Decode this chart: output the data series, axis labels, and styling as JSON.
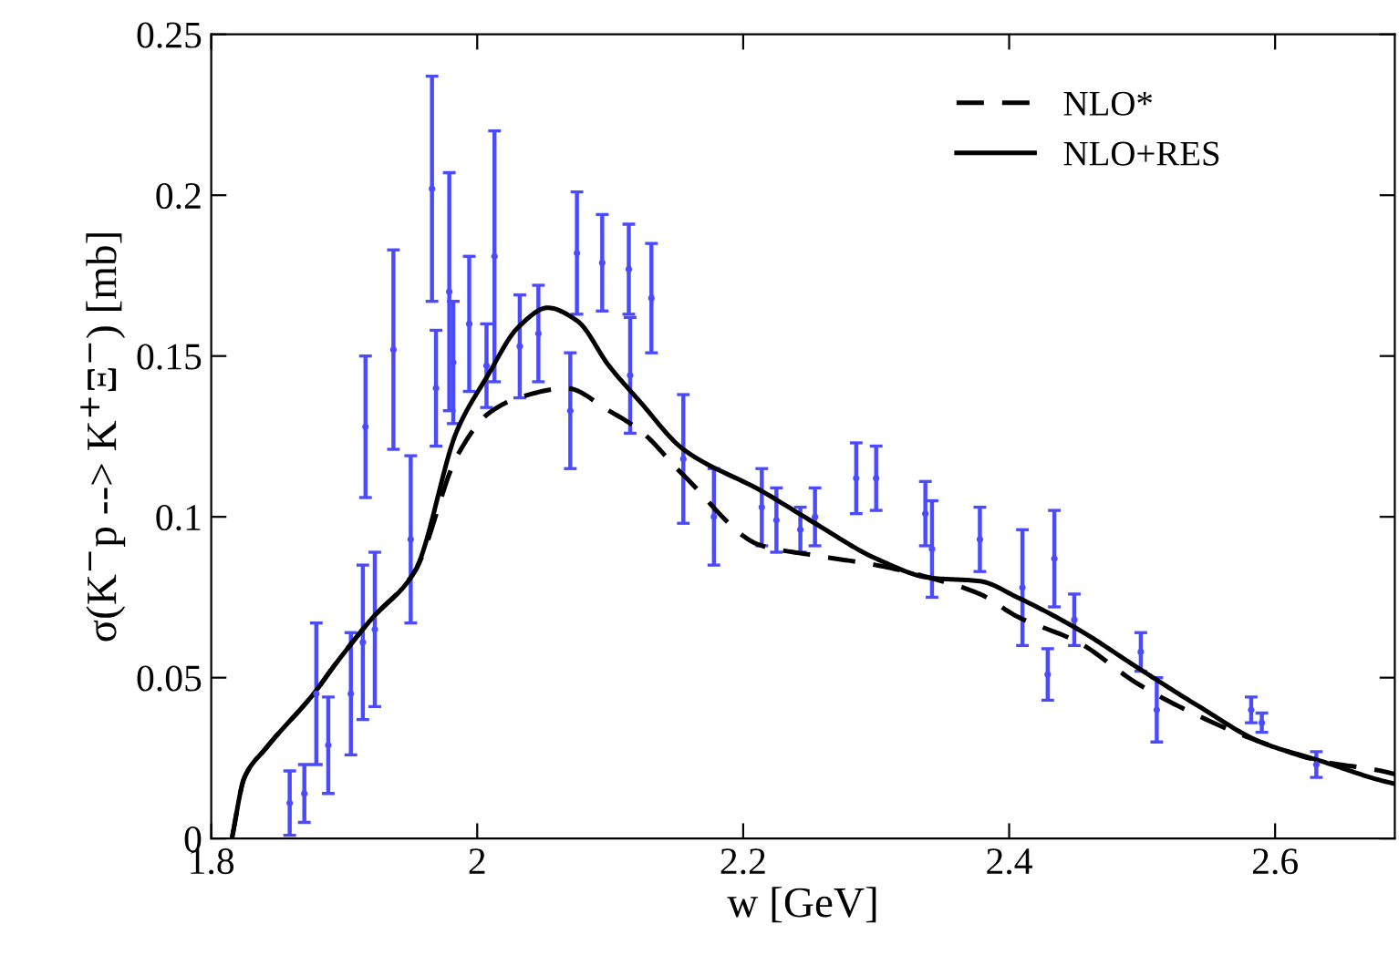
{
  "chart_data": {
    "type": "line",
    "xlabel": "w [GeV]",
    "ylabel": "σ(K$^{−}$p --> K$^{+}$Ξ$^{−}$) [mb]",
    "xlim": [
      1.8,
      2.69
    ],
    "xticks": [
      1.8,
      2,
      2.2,
      2.4,
      2.6
    ],
    "ylim": [
      0,
      0.25
    ],
    "yticks": [
      0,
      0.05,
      0.1,
      0.15,
      0.2,
      0.25
    ],
    "grid": false,
    "legend": "top right",
    "marker": "none",
    "series": [
      {
        "type": "scatter",
        "color": "#4a4aff",
        "marker": "none",
        "x": [
          1.859,
          1.87,
          1.879,
          1.888,
          1.905,
          1.914,
          1.923,
          1.916,
          1.937,
          1.95,
          1.966,
          1.969,
          1.979,
          1.982,
          1.994,
          2.007,
          2.013,
          2.032,
          2.046,
          2.07,
          2.075,
          2.094,
          2.114,
          2.115,
          2.131,
          2.155,
          2.178,
          2.214,
          2.225,
          2.243,
          2.254,
          2.285,
          2.3,
          2.337,
          2.342,
          2.378,
          2.41,
          2.429,
          2.434,
          2.449,
          2.499,
          2.511,
          2.582,
          2.59,
          2.631
        ],
        "values": [
          0.011,
          0.014,
          0.045,
          0.029,
          0.045,
          0.061,
          0.065,
          0.128,
          0.152,
          0.093,
          0.202,
          0.14,
          0.17,
          0.148,
          0.16,
          0.147,
          0.181,
          0.153,
          0.157,
          0.133,
          0.182,
          0.179,
          0.177,
          0.144,
          0.168,
          0.118,
          0.1,
          0.103,
          0.099,
          0.096,
          0.1,
          0.112,
          0.112,
          0.101,
          0.09,
          0.093,
          0.078,
          0.051,
          0.087,
          0.068,
          0.058,
          0.04,
          0.04,
          0.036,
          0.023
        ],
        "errors": [
          0.01,
          0.009,
          0.022,
          0.015,
          0.019,
          0.024,
          0.024,
          0.022,
          0.031,
          0.026,
          0.035,
          0.018,
          0.037,
          0.019,
          0.021,
          0.013,
          0.039,
          0.016,
          0.015,
          0.018,
          0.019,
          0.015,
          0.014,
          0.018,
          0.017,
          0.02,
          0.015,
          0.012,
          0.01,
          0.007,
          0.009,
          0.011,
          0.01,
          0.01,
          0.015,
          0.01,
          0.018,
          0.008,
          0.015,
          0.008,
          0.006,
          0.01,
          0.004,
          0.003,
          0.004
        ]
      },
      {
        "name": "NLO*",
        "color": "#000000",
        "line_style": "dashed",
        "x": [
          1.8155,
          1.825,
          1.841,
          1.877,
          1.893,
          1.92,
          1.953,
          1.985,
          2.008,
          2.031,
          2.067,
          2.099,
          2.122,
          2.155,
          2.214,
          2.254,
          2.3,
          2.341,
          2.378,
          2.406,
          2.452,
          2.497,
          2.543,
          2.589,
          2.635,
          2.68,
          2.69
        ],
        "values": [
          0,
          0.019,
          0.028,
          0.045,
          0.054,
          0.068,
          0.083,
          0.119,
          0.132,
          0.137,
          0.14,
          0.133,
          0.127,
          0.113,
          0.091,
          0.088,
          0.085,
          0.081,
          0.076,
          0.069,
          0.061,
          0.048,
          0.038,
          0.03,
          0.024,
          0.021,
          0.02
        ]
      },
      {
        "name": "NLO+RES",
        "color": "#000000",
        "line_style": "solid",
        "x": [
          1.8155,
          1.825,
          1.841,
          1.877,
          1.893,
          1.92,
          1.953,
          1.985,
          2.008,
          2.031,
          2.053,
          2.075,
          2.099,
          2.122,
          2.155,
          2.214,
          2.254,
          2.3,
          2.341,
          2.378,
          2.406,
          2.452,
          2.497,
          2.543,
          2.589,
          2.635,
          2.68,
          2.69
        ],
        "values": [
          0,
          0.019,
          0.028,
          0.045,
          0.054,
          0.068,
          0.083,
          0.127,
          0.144,
          0.159,
          0.165,
          0.161,
          0.147,
          0.136,
          0.121,
          0.108,
          0.098,
          0.087,
          0.081,
          0.08,
          0.075,
          0.065,
          0.053,
          0.041,
          0.03,
          0.024,
          0.018,
          0.017
        ]
      }
    ]
  }
}
